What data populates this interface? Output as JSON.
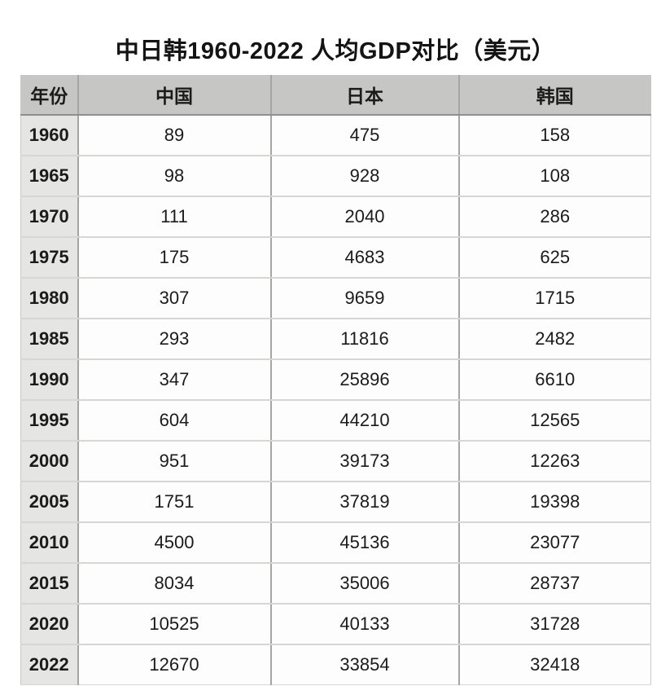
{
  "table": {
    "title": "中日韩1960-2022 人均GDP对比（美元）",
    "columns": [
      "年份",
      "中国",
      "日本",
      "韩国"
    ],
    "rows": [
      [
        "1960",
        "89",
        "475",
        "158"
      ],
      [
        "1965",
        "98",
        "928",
        "108"
      ],
      [
        "1970",
        "111",
        "2040",
        "286"
      ],
      [
        "1975",
        "175",
        "4683",
        "625"
      ],
      [
        "1980",
        "307",
        "9659",
        "1715"
      ],
      [
        "1985",
        "293",
        "11816",
        "2482"
      ],
      [
        "1990",
        "347",
        "25896",
        "6610"
      ],
      [
        "1995",
        "604",
        "44210",
        "12565"
      ],
      [
        "2000",
        "951",
        "39173",
        "12263"
      ],
      [
        "2005",
        "1751",
        "37819",
        "19398"
      ],
      [
        "2010",
        "4500",
        "45136",
        "23077"
      ],
      [
        "2015",
        "8034",
        "35006",
        "28737"
      ],
      [
        "2020",
        "10525",
        "40133",
        "31728"
      ],
      [
        "2022",
        "12670",
        "33854",
        "32418"
      ]
    ]
  },
  "colors": {
    "header_bg": "#c6c6c4",
    "year_col_bg": "#e5e5e3",
    "cell_bg": "#fdfdfd",
    "col_line": "#a5a5a3",
    "row_line": "#d6d6d4",
    "header_line": "#8f8f8d",
    "outer_border": "#c9c9c7"
  },
  "chart_data": {
    "type": "table",
    "title": "中日韩1960-2022 人均GDP对比（美元）",
    "columns": [
      "年份",
      "中国",
      "日本",
      "韩国"
    ],
    "categories": [
      "1960",
      "1965",
      "1970",
      "1975",
      "1980",
      "1985",
      "1990",
      "1995",
      "2000",
      "2005",
      "2010",
      "2015",
      "2020",
      "2022"
    ],
    "series": [
      {
        "name": "中国",
        "values": [
          89,
          98,
          111,
          175,
          307,
          293,
          347,
          604,
          951,
          1751,
          4500,
          8034,
          10525,
          12670
        ]
      },
      {
        "name": "日本",
        "values": [
          475,
          928,
          2040,
          4683,
          9659,
          11816,
          25896,
          44210,
          39173,
          37819,
          45136,
          35006,
          40133,
          33854
        ]
      },
      {
        "name": "韩国",
        "values": [
          158,
          108,
          286,
          625,
          1715,
          2482,
          6610,
          12565,
          12263,
          19398,
          23077,
          28737,
          31728,
          32418
        ]
      }
    ],
    "unit": "美元"
  }
}
